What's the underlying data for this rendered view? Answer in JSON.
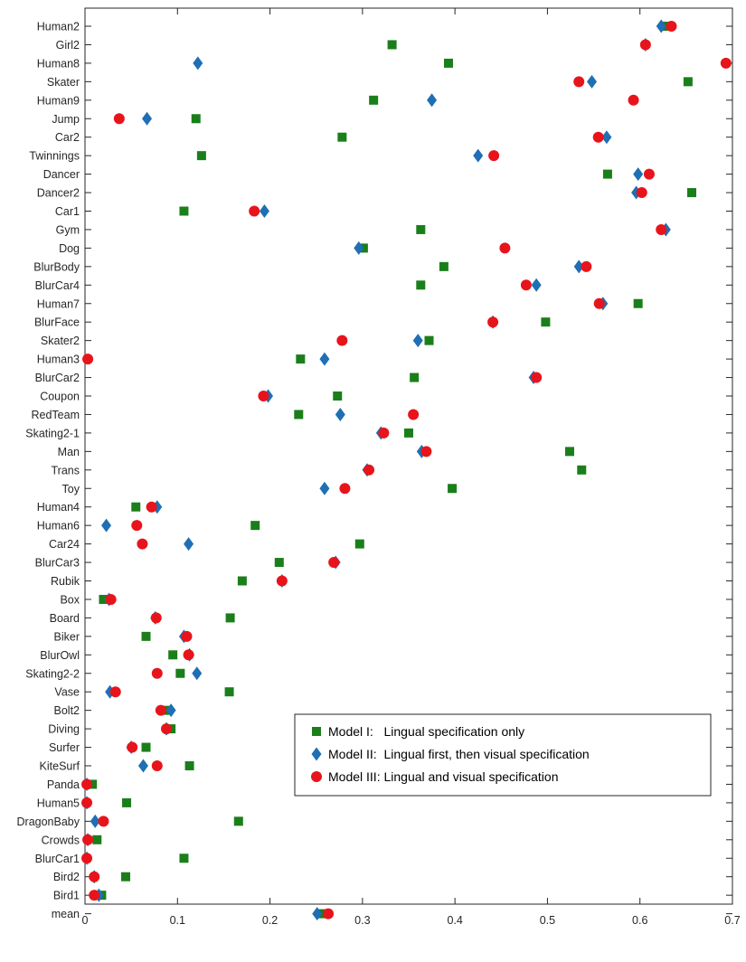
{
  "chart_data": {
    "type": "scatter",
    "orientation": "horizontal",
    "title": "",
    "xlabel": "",
    "ylabel": "",
    "xlim": [
      0,
      0.7
    ],
    "xticks": [
      0,
      0.1,
      0.2,
      0.3,
      0.4,
      0.5,
      0.6,
      0.7
    ],
    "xtick_labels": [
      "0",
      "0.1",
      "0.2",
      "0.3",
      "0.4",
      "0.5",
      "0.6",
      "0.7"
    ],
    "grid": false,
    "legend_position": "lower-right",
    "categories": [
      "Human2",
      "Girl2",
      "Human8",
      "Skater",
      "Human9",
      "Jump",
      "Car2",
      "Twinnings",
      "Dancer",
      "Dancer2",
      "Car1",
      "Gym",
      "Dog",
      "BlurBody",
      "BlurCar4",
      "Human7",
      "BlurFace",
      "Skater2",
      "Human3",
      "BlurCar2",
      "Coupon",
      "RedTeam",
      "Skating2-1",
      "Man",
      "Trans",
      "Toy",
      "Human4",
      "Human6",
      "Car24",
      "BlurCar3",
      "Rubik",
      "Box",
      "Board",
      "Biker",
      "BlurOwl",
      "Skating2-2",
      "Vase",
      "Bolt2",
      "Diving",
      "Surfer",
      "KiteSurf",
      "Panda",
      "Human5",
      "DragonBaby",
      "Crowds",
      "BlurCar1",
      "Bird2",
      "Bird1",
      "mean"
    ],
    "series": [
      {
        "name": "Model I:   Lingual specification only",
        "marker": "square",
        "color": "#1a7f1a",
        "values": [
          0.628,
          0.332,
          0.393,
          0.652,
          0.312,
          0.12,
          0.278,
          0.126,
          0.565,
          0.656,
          0.107,
          0.363,
          0.301,
          0.388,
          0.363,
          0.598,
          0.498,
          0.372,
          0.233,
          0.356,
          0.273,
          0.231,
          0.35,
          0.524,
          0.537,
          0.397,
          0.055,
          0.184,
          0.297,
          0.21,
          0.17,
          0.02,
          0.157,
          0.066,
          0.095,
          0.103,
          0.156,
          0.088,
          0.093,
          0.066,
          0.113,
          0.008,
          0.045,
          0.166,
          0.013,
          0.107,
          0.044,
          0.018,
          0.256
        ]
      },
      {
        "name": "Model II:  Lingual first, then visual specification",
        "marker": "diamond",
        "color": "#1f6fb4",
        "values": [
          0.623,
          0.606,
          0.122,
          0.548,
          0.375,
          0.067,
          0.564,
          0.425,
          0.598,
          0.596,
          0.194,
          0.628,
          0.296,
          0.534,
          0.488,
          0.56,
          0.441,
          0.36,
          0.259,
          0.485,
          0.198,
          0.276,
          0.32,
          0.364,
          0.305,
          0.259,
          0.078,
          0.023,
          0.112,
          0.271,
          0.213,
          0.026,
          0.076,
          0.107,
          0.113,
          0.121,
          0.027,
          0.093,
          0.088,
          0.05,
          0.063,
          0.002,
          0.002,
          0.011,
          0.003,
          0.002,
          0.01,
          0.015,
          0.251
        ]
      },
      {
        "name": "Model III: Lingual and visual specification",
        "marker": "circle",
        "color": "#e8141b",
        "values": [
          0.634,
          0.606,
          0.693,
          0.534,
          0.593,
          0.037,
          0.555,
          0.442,
          0.61,
          0.602,
          0.183,
          0.623,
          0.454,
          0.542,
          0.477,
          0.556,
          0.441,
          0.278,
          0.003,
          0.488,
          0.193,
          0.355,
          0.323,
          0.369,
          0.307,
          0.281,
          0.072,
          0.056,
          0.062,
          0.269,
          0.213,
          0.028,
          0.077,
          0.11,
          0.112,
          0.078,
          0.033,
          0.082,
          0.088,
          0.051,
          0.078,
          0.002,
          0.002,
          0.02,
          0.003,
          0.002,
          0.01,
          0.01,
          0.263
        ]
      }
    ]
  }
}
